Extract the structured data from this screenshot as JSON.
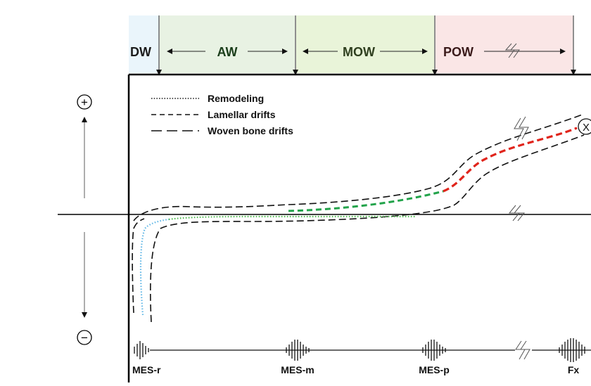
{
  "zones": [
    {
      "label": "DW",
      "fill": "#eaf5fb"
    },
    {
      "label": "AW",
      "fill": "#e8f2e3"
    },
    {
      "label": "MOW",
      "fill": "#e9f4d9"
    },
    {
      "label": "POW",
      "fill": "#fae6e6"
    }
  ],
  "legend": [
    {
      "label": "Remodeling",
      "style": "dotted"
    },
    {
      "label": "Lamellar drifts",
      "style": "short-dash"
    },
    {
      "label": "Woven bone drifts",
      "style": "long-dash"
    }
  ],
  "signs": {
    "plus": "+",
    "minus": "−"
  },
  "marker": "X",
  "stimuli": [
    "MES-r",
    "MES-m",
    "MES-p",
    "Fx"
  ],
  "colors": {
    "remodeling_early": "#5fb6e6",
    "remodeling_late": "#4cb84c",
    "lamellar": "#22a34a",
    "woven": "#e0241b",
    "envelope": "#111111"
  }
}
